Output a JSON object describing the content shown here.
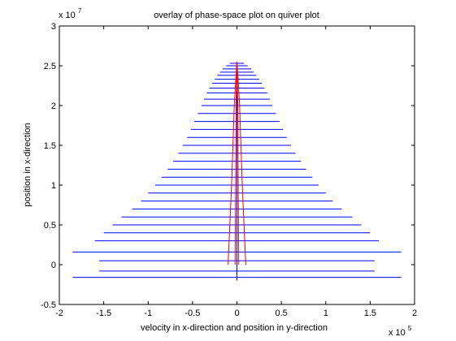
{
  "chart_data": {
    "type": "quiver",
    "title": "overlay of phase-space plot on quiver plot",
    "xlabel": "velocity in x-direction and position in y-direction",
    "ylabel": "position in x-direction",
    "x_exponent_label": "x 10",
    "x_exponent": "5",
    "y_exponent_label": "x 10",
    "y_exponent": "7",
    "xlim": [
      -2,
      2
    ],
    "ylim": [
      -0.5,
      3
    ],
    "xticks": [
      -2,
      -1.5,
      -1,
      -0.5,
      0,
      0.5,
      1,
      1.5,
      2
    ],
    "xtick_labels": [
      "-2",
      "-1.5",
      "-1",
      "-0.5",
      "0",
      "0.5",
      "1",
      "1.5",
      "2"
    ],
    "yticks": [
      -0.5,
      0,
      0.5,
      1,
      1.5,
      2,
      2.5,
      3
    ],
    "ytick_labels": [
      "-0.5",
      "0",
      "0.5",
      "1",
      "1.5",
      "2",
      "2.5",
      "3"
    ],
    "grid": false,
    "colors": {
      "quiver": "#0000ff",
      "phase_curve": "#ff0000",
      "axes": "#000000"
    },
    "quiver_arrows": [
      {
        "y": -0.16,
        "x0": -1.85,
        "x1": 1.85
      },
      {
        "y": 0.16,
        "x0": -1.85,
        "x1": 1.85
      },
      {
        "y": -0.08,
        "x0": -1.55,
        "x1": 1.55
      },
      {
        "y": 0.05,
        "x0": -1.55,
        "x1": 1.55
      },
      {
        "y": 0.3,
        "x0": -1.6,
        "x1": 1.6
      },
      {
        "y": 0.4,
        "x0": -1.5,
        "x1": 1.5
      },
      {
        "y": 0.5,
        "x0": -1.4,
        "x1": 1.4
      },
      {
        "y": 0.6,
        "x0": -1.3,
        "x1": 1.3
      },
      {
        "y": 0.7,
        "x0": -1.18,
        "x1": 1.18
      },
      {
        "y": 0.8,
        "x0": -1.08,
        "x1": 1.08
      },
      {
        "y": 0.9,
        "x0": -1.0,
        "x1": 1.0
      },
      {
        "y": 1.0,
        "x0": -0.92,
        "x1": 0.92
      },
      {
        "y": 1.1,
        "x0": -0.85,
        "x1": 0.85
      },
      {
        "y": 1.2,
        "x0": -0.78,
        "x1": 0.78
      },
      {
        "y": 1.3,
        "x0": -0.72,
        "x1": 0.72
      },
      {
        "y": 1.4,
        "x0": -0.66,
        "x1": 0.66
      },
      {
        "y": 1.5,
        "x0": -0.61,
        "x1": 0.61
      },
      {
        "y": 1.6,
        "x0": -0.56,
        "x1": 0.56
      },
      {
        "y": 1.7,
        "x0": -0.52,
        "x1": 0.52
      },
      {
        "y": 1.8,
        "x0": -0.48,
        "x1": 0.48
      },
      {
        "y": 1.9,
        "x0": -0.44,
        "x1": 0.44
      },
      {
        "y": 2.0,
        "x0": -0.4,
        "x1": 0.4
      },
      {
        "y": 2.08,
        "x0": -0.37,
        "x1": 0.37
      },
      {
        "y": 2.16,
        "x0": -0.34,
        "x1": 0.34
      },
      {
        "y": 2.22,
        "x0": -0.31,
        "x1": 0.31
      },
      {
        "y": 2.28,
        "x0": -0.28,
        "x1": 0.28
      },
      {
        "y": 2.33,
        "x0": -0.25,
        "x1": 0.25
      },
      {
        "y": 2.38,
        "x0": -0.22,
        "x1": 0.22
      },
      {
        "y": 2.42,
        "x0": -0.19,
        "x1": 0.19
      },
      {
        "y": 2.46,
        "x0": -0.16,
        "x1": 0.16
      },
      {
        "y": 2.5,
        "x0": -0.12,
        "x1": 0.12
      },
      {
        "y": 2.53,
        "x0": -0.08,
        "x1": 0.08
      }
    ],
    "quiver_center_line": {
      "x": 0,
      "y0": -0.2,
      "y1": 2.55
    },
    "phase_curves": [
      [
        [
          -0.1,
          0.0
        ],
        [
          -0.08,
          0.5
        ],
        [
          -0.06,
          1.0
        ],
        [
          -0.045,
          1.5
        ],
        [
          -0.03,
          2.0
        ],
        [
          -0.015,
          2.3
        ],
        [
          0.0,
          2.55
        ]
      ],
      [
        [
          0.1,
          0.0
        ],
        [
          0.08,
          0.5
        ],
        [
          0.06,
          1.0
        ],
        [
          0.045,
          1.5
        ],
        [
          0.03,
          2.0
        ],
        [
          0.015,
          2.3
        ],
        [
          0.0,
          2.55
        ]
      ],
      [
        [
          -0.02,
          0.0
        ],
        [
          -0.015,
          1.0
        ],
        [
          -0.01,
          2.0
        ],
        [
          0.0,
          2.55
        ]
      ],
      [
        [
          0.02,
          0.0
        ],
        [
          0.015,
          1.0
        ],
        [
          0.01,
          2.0
        ],
        [
          0.0,
          2.55
        ]
      ]
    ]
  }
}
